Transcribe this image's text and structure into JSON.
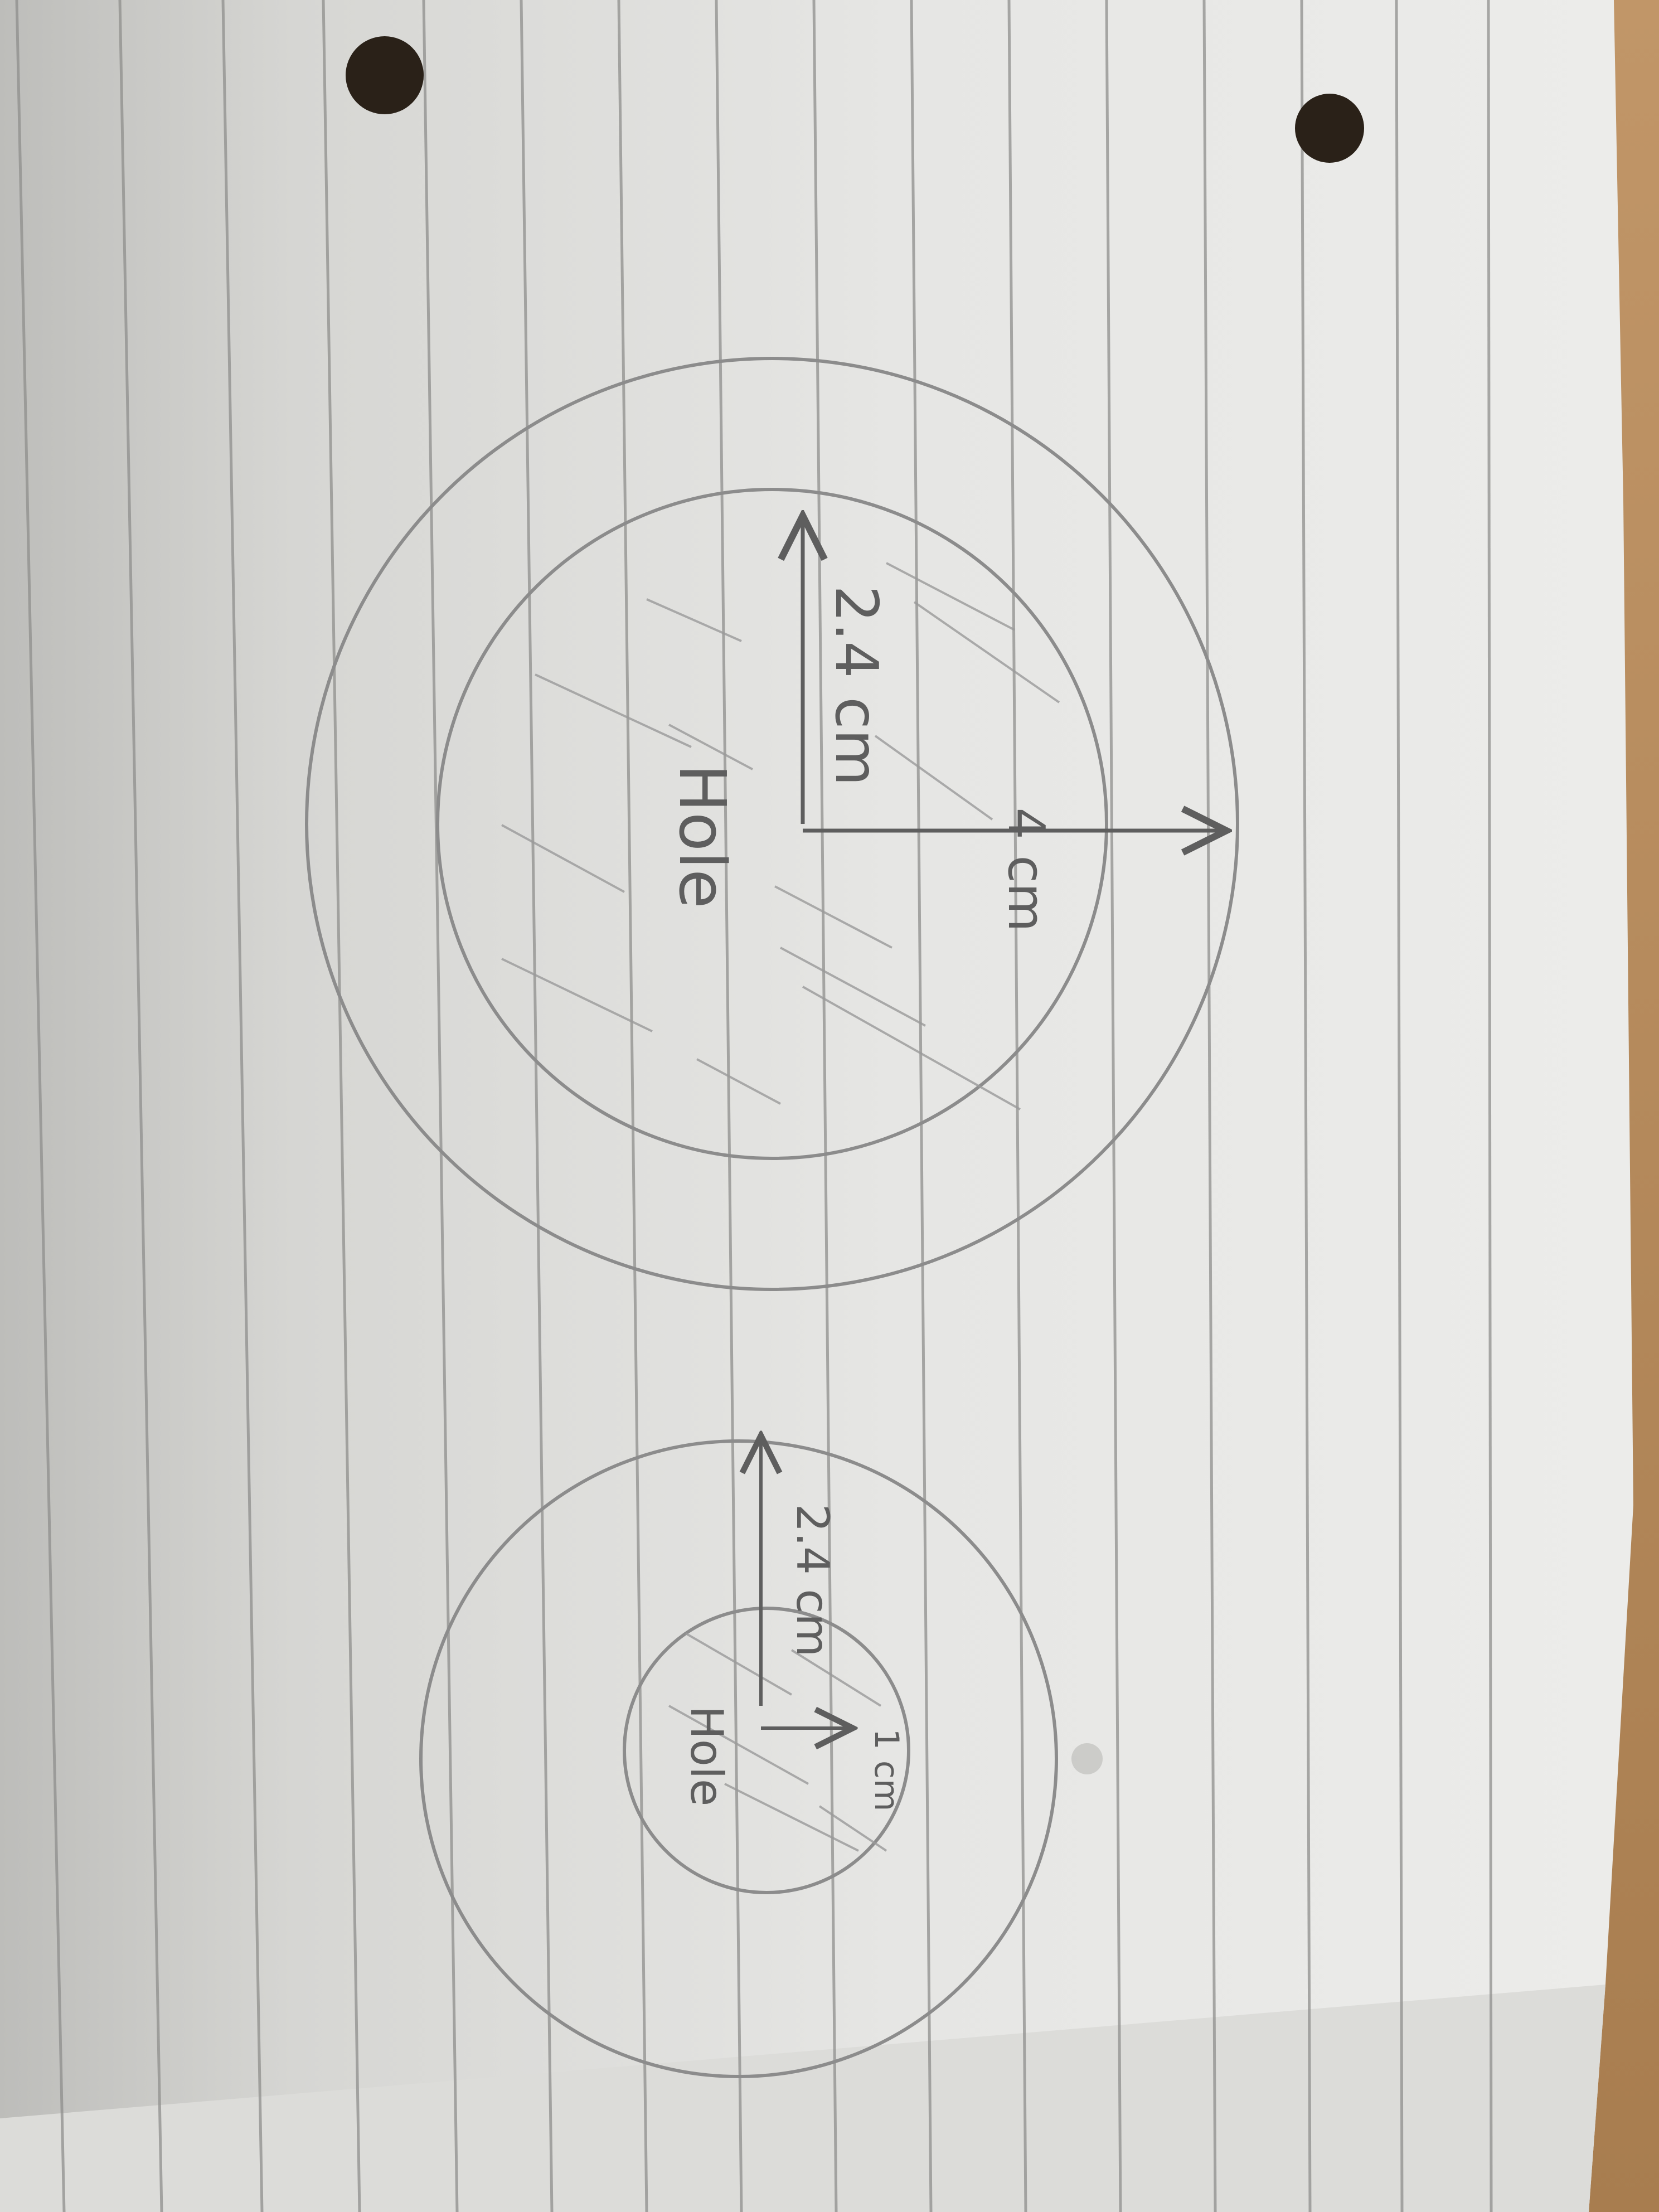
{
  "photo": {
    "subject": "",
    "colors": {
      "desk": "#b58a5a",
      "paper": "#e4e4e2",
      "paper_shadow": "#c9c9c6",
      "rule_line": "#8f8f8d",
      "pencil": "#8c8c8c",
      "ink": "#5e5e5e",
      "punch_hole": "#2a2118"
    }
  },
  "large_circle": {
    "radius_label": "2.4 cm",
    "outer_label": "4 cm",
    "hole_label": "Hole"
  },
  "small_circle": {
    "radius_label": "2.4 cm",
    "hole_radius_label": "1 cm",
    "hole_label": "Hole"
  }
}
